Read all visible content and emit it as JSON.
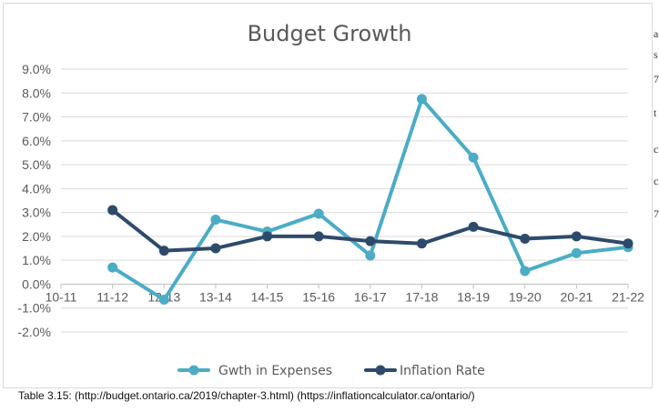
{
  "chart_data": {
    "type": "line",
    "title": "Budget Growth",
    "categories": [
      "10-11",
      "11-12",
      "12-13",
      "13-14",
      "14-15",
      "15-16",
      "16-17",
      "17-18",
      "18-19",
      "19-20",
      "20-21",
      "21-22"
    ],
    "ylim": [
      -2.0,
      9.0
    ],
    "yticks": [
      -2.0,
      -1.0,
      0.0,
      1.0,
      2.0,
      3.0,
      4.0,
      5.0,
      6.0,
      7.0,
      8.0,
      9.0
    ],
    "ytick_labels": [
      "-2.0%",
      "-1.0%",
      "0.0%",
      "1.0%",
      "2.0%",
      "3.0%",
      "4.0%",
      "5.0%",
      "6.0%",
      "7.0%",
      "8.0%",
      "9.0%"
    ],
    "grid": true,
    "legend_position": "bottom",
    "series": [
      {
        "name": "Gwth in Expenses",
        "color": "#4bacc6",
        "values": [
          null,
          0.7,
          -0.65,
          2.7,
          2.2,
          2.95,
          1.2,
          7.75,
          5.3,
          0.55,
          1.3,
          1.55
        ]
      },
      {
        "name": "Inflation Rate",
        "color": "#2e4a6b",
        "values": [
          null,
          3.1,
          1.4,
          1.5,
          2.0,
          2.0,
          1.8,
          1.7,
          2.4,
          1.9,
          2.0,
          1.7
        ]
      }
    ]
  },
  "caption": "Table 3.15:  (http://budget.ontario.ca/2019/chapter-3.html) (https://inflationcalculator.ca/ontario/)",
  "edge_fragments": [
    "a",
    "s",
    "7",
    "t",
    "c",
    "c",
    "7"
  ]
}
